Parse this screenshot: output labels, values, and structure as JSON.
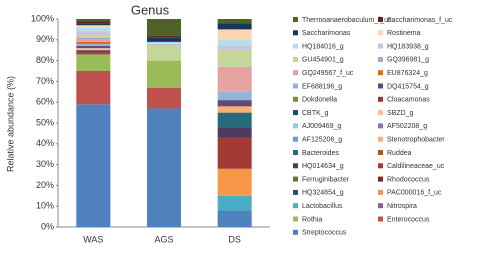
{
  "chart_data": {
    "type": "stacked_bar",
    "title": "Genus",
    "y_label": "Relative abundance (%)",
    "categories": [
      "WAS",
      "AGS",
      "DS"
    ],
    "ylim": [
      0,
      100
    ],
    "yticks": [
      {
        "value": 0,
        "label": "0%"
      },
      {
        "value": 10,
        "label": "10%"
      },
      {
        "value": 20,
        "label": "20%"
      },
      {
        "value": 30,
        "label": "30%"
      },
      {
        "value": 40,
        "label": "40%"
      },
      {
        "value": 50,
        "label": "50%"
      },
      {
        "value": 60,
        "label": "60%"
      },
      {
        "value": 70,
        "label": "70%"
      },
      {
        "value": 80,
        "label": "80%"
      },
      {
        "value": 90,
        "label": "90%"
      },
      {
        "value": 100,
        "label": "100%"
      }
    ],
    "series": [
      {
        "name": "Streptococcus",
        "color": "#4f81bd",
        "values": [
          59,
          57,
          8
        ]
      },
      {
        "name": "Enterococcus",
        "color": "#c0504d",
        "values": [
          16,
          10,
          0
        ]
      },
      {
        "name": "Rothia",
        "color": "#9bbb59",
        "values": [
          8,
          13,
          0
        ]
      },
      {
        "name": "Nitrospira",
        "color": "#8064a2",
        "values": [
          0,
          0,
          0
        ]
      },
      {
        "name": "Lactobacillus",
        "color": "#4bacc6",
        "values": [
          0,
          0,
          7
        ]
      },
      {
        "name": "PAC000016_f_uc",
        "color": "#f79646",
        "values": [
          0,
          0,
          13
        ]
      },
      {
        "name": "HQ324854_g",
        "color": "#2c4d75",
        "values": [
          0,
          0,
          0
        ]
      },
      {
        "name": "Rhodococcus",
        "color": "#772c2a",
        "values": [
          0,
          0,
          0
        ]
      },
      {
        "name": "Ferruginibacter",
        "color": "#5f7530",
        "values": [
          0,
          0,
          0
        ]
      },
      {
        "name": "Caldilineaceae_uc",
        "color": "#a33a36",
        "values": [
          1,
          0,
          15
        ]
      },
      {
        "name": "HQ014634_g",
        "color": "#4d3b62",
        "values": [
          1,
          0,
          5
        ]
      },
      {
        "name": "Ruddea",
        "color": "#b65708",
        "values": [
          0,
          0,
          0
        ]
      },
      {
        "name": "Bacteroides",
        "color": "#276a7c",
        "values": [
          0,
          0,
          7
        ]
      },
      {
        "name": "Stenotrophobacter",
        "color": "#f9b074",
        "values": [
          0,
          0,
          3
        ]
      },
      {
        "name": "AF125206_g",
        "color": "#729aca",
        "values": [
          0,
          0,
          0
        ]
      },
      {
        "name": "AF502208_g",
        "color": "#8e6fa8",
        "values": [
          0,
          0,
          0
        ]
      },
      {
        "name": "AJ009469_g",
        "color": "#93cddd",
        "values": [
          0,
          0,
          0
        ]
      },
      {
        "name": "SBZD_g",
        "color": "#fac090",
        "values": [
          1,
          0,
          0
        ]
      },
      {
        "name": "CBTK_g",
        "color": "#1f497d",
        "values": [
          0,
          0,
          0
        ]
      },
      {
        "name": "Cloacamonas",
        "color": "#953735",
        "values": [
          0,
          0,
          0
        ]
      },
      {
        "name": "Dokdonella",
        "color": "#76923c",
        "values": [
          0,
          0,
          0
        ]
      },
      {
        "name": "DQ415754_g",
        "color": "#604a7b",
        "values": [
          1,
          0,
          3
        ]
      },
      {
        "name": "EF688196_g",
        "color": "#95b3d7",
        "values": [
          1,
          0,
          4
        ]
      },
      {
        "name": "EU876324_g",
        "color": "#e46c0a",
        "values": [
          1,
          0,
          0
        ]
      },
      {
        "name": "GQ249567_f_uc",
        "color": "#e6a2a0",
        "values": [
          1,
          0,
          12
        ]
      },
      {
        "name": "GQ396981_g",
        "color": "#b3a2c7",
        "values": [
          1,
          0,
          0
        ]
      },
      {
        "name": "GU454901_g",
        "color": "#c3d69b",
        "values": [
          1,
          7,
          8
        ]
      },
      {
        "name": "HQ183938_g",
        "color": "#ccc1da",
        "values": [
          2,
          1,
          2
        ]
      },
      {
        "name": "HQ184016_g",
        "color": "#b7dee8",
        "values": [
          2,
          1,
          3
        ]
      },
      {
        "name": "Rostinema",
        "color": "#fcd5b5",
        "values": [
          1,
          0,
          5
        ]
      },
      {
        "name": "Saccharimonas",
        "color": "#17375e",
        "values": [
          1,
          2,
          3
        ]
      },
      {
        "name": "Saccharimonas_f_uc",
        "color": "#632523",
        "values": [
          1,
          1,
          0
        ]
      },
      {
        "name": "Thermoanaerobaculum_f_uc",
        "color": "#4f6228",
        "values": [
          1,
          8,
          2
        ]
      }
    ]
  }
}
